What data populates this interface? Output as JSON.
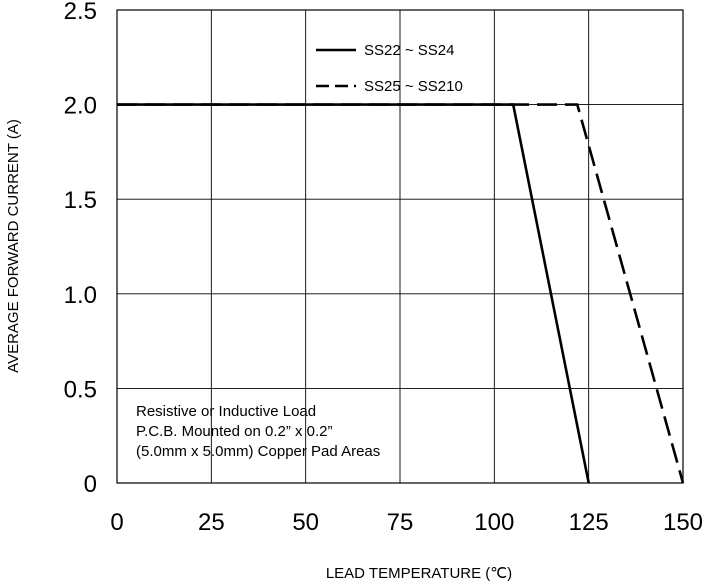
{
  "chart_data": {
    "type": "line",
    "title": "",
    "xlabel": "LEAD TEMPERATURE (℃)",
    "ylabel": "AVERAGE FORWARD CURRENT (A)",
    "xlim": [
      0,
      150
    ],
    "ylim": [
      0,
      2.5
    ],
    "x_ticks": [
      "0",
      "25",
      "50",
      "75",
      "100",
      "125",
      "150"
    ],
    "y_ticks": [
      "0",
      "0.5",
      "1.0",
      "1.5",
      "2.0",
      "2.5"
    ],
    "grid": true,
    "legend_position": "top-right",
    "series": [
      {
        "name": "SS22 ~ SS24",
        "style": "solid",
        "color": "#000000",
        "points": [
          [
            0,
            2.0
          ],
          [
            105,
            2.0
          ],
          [
            125,
            0
          ]
        ]
      },
      {
        "name": "SS25 ~ SS210",
        "style": "dashed",
        "color": "#000000",
        "points": [
          [
            0,
            2.0
          ],
          [
            122,
            2.0
          ],
          [
            150,
            0
          ]
        ]
      }
    ],
    "annotation": [
      "Resistive or Inductive Load",
      "P.C.B. Mounted on 0.2” x 0.2”",
      "(5.0mm x 5.0mm) Copper Pad Areas"
    ]
  }
}
